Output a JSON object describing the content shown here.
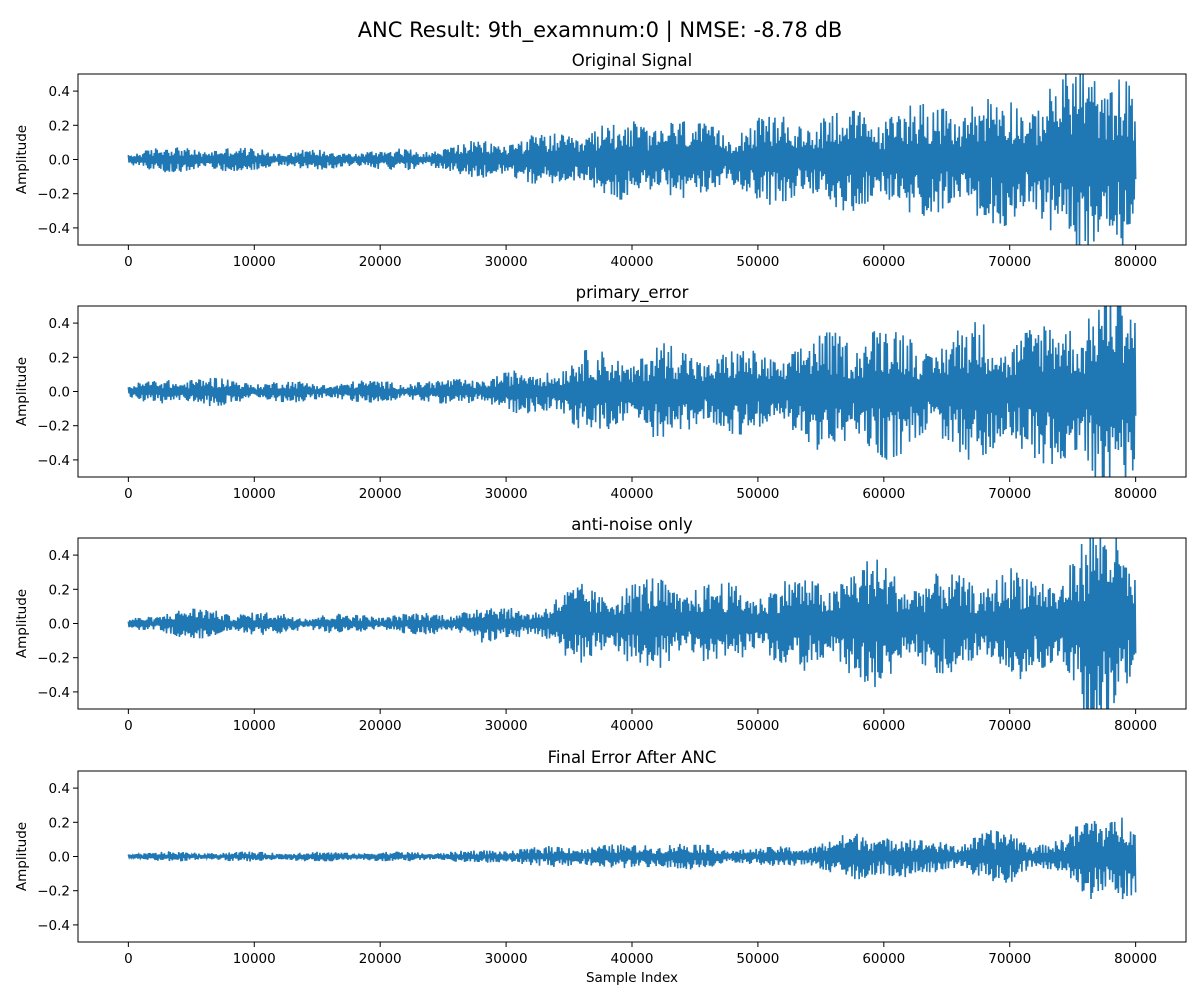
{
  "figure_title": "ANC Result: 9th_examnum:0 | NMSE: -8.78 dB",
  "chart_data": [
    {
      "type": "line",
      "title": "Original Signal",
      "xlabel": "",
      "ylabel": "Amplitude",
      "xlim": [
        -4000,
        84000
      ],
      "ylim": [
        -0.5,
        0.5
      ],
      "xticks": [
        0,
        10000,
        20000,
        30000,
        40000,
        50000,
        60000,
        70000,
        80000
      ],
      "yticks": [
        -0.4,
        -0.2,
        0.0,
        0.2,
        0.4
      ],
      "ytick_labels": [
        "−0.4",
        "−0.2",
        "0.0",
        "0.2",
        "0.4"
      ],
      "grid": false,
      "color": "#1f77b4",
      "envelope": {
        "x": [
          0,
          3000,
          6000,
          10000,
          15000,
          20000,
          25000,
          28000,
          30000,
          33000,
          36000,
          40000,
          42000,
          45000,
          50000,
          53000,
          55000,
          58000,
          60000,
          63000,
          65000,
          68000,
          70000,
          72000,
          74000,
          75500,
          76500,
          78000,
          79000,
          80000
        ],
        "amplitude": [
          0.05,
          0.08,
          0.08,
          0.07,
          0.06,
          0.06,
          0.08,
          0.12,
          0.15,
          0.15,
          0.2,
          0.25,
          0.3,
          0.22,
          0.25,
          0.3,
          0.3,
          0.32,
          0.35,
          0.35,
          0.4,
          0.38,
          0.42,
          0.45,
          0.5,
          0.6,
          0.65,
          0.65,
          0.6,
          0.35
        ]
      }
    },
    {
      "type": "line",
      "title": "primary_error",
      "xlabel": "",
      "ylabel": "Amplitude",
      "xlim": [
        -4000,
        84000
      ],
      "ylim": [
        -0.5,
        0.5
      ],
      "xticks": [
        0,
        10000,
        20000,
        30000,
        40000,
        50000,
        60000,
        70000,
        80000
      ],
      "yticks": [
        -0.4,
        -0.2,
        0.0,
        0.2,
        0.4
      ],
      "ytick_labels": [
        "−0.4",
        "−0.2",
        "0.0",
        "0.2",
        "0.4"
      ],
      "grid": false,
      "color": "#1f77b4",
      "envelope": {
        "x": [
          0,
          3000,
          6000,
          10000,
          15000,
          20000,
          25000,
          28000,
          30000,
          33000,
          36000,
          40000,
          42000,
          45000,
          50000,
          53000,
          55000,
          58000,
          60000,
          63000,
          65000,
          68000,
          70000,
          72000,
          74000,
          75500,
          76500,
          78000,
          79000,
          80000
        ],
        "amplitude": [
          0.04,
          0.09,
          0.09,
          0.07,
          0.06,
          0.07,
          0.07,
          0.1,
          0.12,
          0.15,
          0.25,
          0.25,
          0.3,
          0.28,
          0.25,
          0.3,
          0.35,
          0.45,
          0.42,
          0.35,
          0.38,
          0.45,
          0.4,
          0.42,
          0.45,
          0.55,
          0.65,
          0.7,
          0.65,
          0.5
        ]
      }
    },
    {
      "type": "line",
      "title": "anti-noise only",
      "xlabel": "",
      "ylabel": "Amplitude",
      "xlim": [
        -4000,
        84000
      ],
      "ylim": [
        -0.5,
        0.5
      ],
      "xticks": [
        0,
        10000,
        20000,
        30000,
        40000,
        50000,
        60000,
        70000,
        80000
      ],
      "yticks": [
        -0.4,
        -0.2,
        0.0,
        0.2,
        0.4
      ],
      "ytick_labels": [
        "−0.4",
        "−0.2",
        "0.0",
        "0.2",
        "0.4"
      ],
      "grid": false,
      "color": "#1f77b4",
      "envelope": {
        "x": [
          0,
          3000,
          6000,
          10000,
          15000,
          20000,
          25000,
          28000,
          30000,
          33000,
          36000,
          40000,
          42000,
          45000,
          50000,
          53000,
          55000,
          58000,
          60000,
          63000,
          65000,
          68000,
          70000,
          72000,
          74000,
          75500,
          76500,
          78000,
          79000,
          80000
        ],
        "amplitude": [
          0.03,
          0.08,
          0.1,
          0.07,
          0.06,
          0.06,
          0.07,
          0.12,
          0.1,
          0.12,
          0.25,
          0.25,
          0.3,
          0.25,
          0.25,
          0.28,
          0.3,
          0.38,
          0.4,
          0.3,
          0.3,
          0.32,
          0.35,
          0.3,
          0.38,
          0.5,
          0.6,
          0.65,
          0.6,
          0.45
        ]
      }
    },
    {
      "type": "line",
      "title": "Final Error After ANC",
      "xlabel": "Sample Index",
      "ylabel": "Amplitude",
      "xlim": [
        -4000,
        84000
      ],
      "ylim": [
        -0.5,
        0.5
      ],
      "xticks": [
        0,
        10000,
        20000,
        30000,
        40000,
        50000,
        60000,
        70000,
        80000
      ],
      "yticks": [
        -0.4,
        -0.2,
        0.0,
        0.2,
        0.4
      ],
      "ytick_labels": [
        "−0.4",
        "−0.2",
        "0.0",
        "0.2",
        "0.4"
      ],
      "grid": false,
      "color": "#1f77b4",
      "envelope": {
        "x": [
          0,
          3000,
          6000,
          10000,
          15000,
          20000,
          25000,
          28000,
          30000,
          33000,
          36000,
          40000,
          42000,
          45000,
          50000,
          53000,
          55000,
          58000,
          60000,
          63000,
          65000,
          68000,
          70000,
          72000,
          74000,
          75500,
          76500,
          78000,
          79000,
          80000
        ],
        "amplitude": [
          0.02,
          0.03,
          0.03,
          0.03,
          0.03,
          0.03,
          0.03,
          0.04,
          0.05,
          0.06,
          0.08,
          0.07,
          0.1,
          0.08,
          0.05,
          0.07,
          0.1,
          0.15,
          0.18,
          0.1,
          0.1,
          0.15,
          0.17,
          0.1,
          0.1,
          0.2,
          0.3,
          0.35,
          0.32,
          0.25
        ]
      }
    }
  ]
}
